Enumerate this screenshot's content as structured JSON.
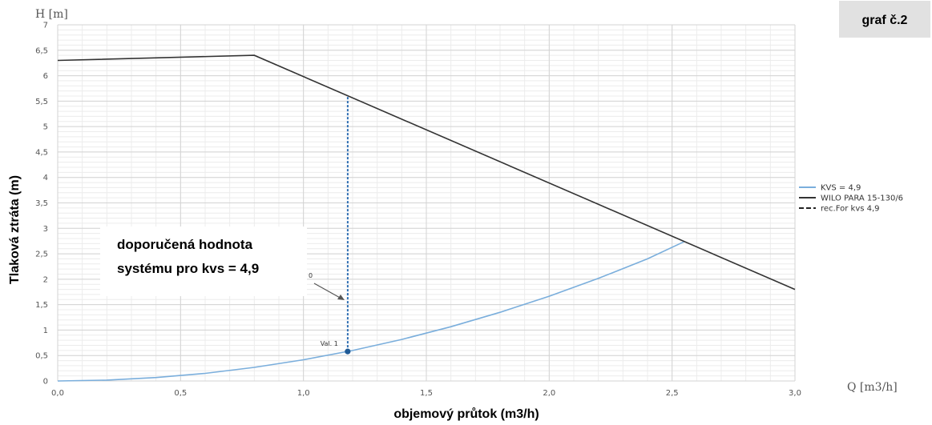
{
  "badge": "graf č.2",
  "callout": {
    "line1": "doporučená hodnota",
    "line2": "systému pro kvs = 4,9",
    "pointer_mark": "0"
  },
  "chart_data": {
    "type": "line",
    "y_unit_label": "H [m]",
    "x_unit_label": "Q [m3/h]",
    "ylabel": "Tlaková ztráta (m)",
    "xlabel": "objemový průtok (m3/h)",
    "xlim": [
      0,
      3.0
    ],
    "ylim": [
      0,
      7
    ],
    "x_ticks": [
      "0,0",
      "0,5",
      "1,0",
      "1,5",
      "2,0",
      "2,5",
      "3,0"
    ],
    "y_ticks": [
      "0",
      "0,5",
      "1",
      "1,5",
      "2",
      "2,5",
      "3",
      "3,5",
      "4",
      "4,5",
      "5",
      "5,5",
      "6",
      "6,5",
      "7"
    ],
    "grid": true,
    "legend_position": "right",
    "series": [
      {
        "name": "KVS = 4,9",
        "style": "solid",
        "color": "#7aaedc",
        "points": [
          [
            0,
            0
          ],
          [
            0.2,
            0.017
          ],
          [
            0.4,
            0.067
          ],
          [
            0.6,
            0.15
          ],
          [
            0.8,
            0.267
          ],
          [
            1.0,
            0.417
          ],
          [
            1.2,
            0.6
          ],
          [
            1.4,
            0.816
          ],
          [
            1.6,
            1.066
          ],
          [
            1.8,
            1.35
          ],
          [
            2.0,
            1.666
          ],
          [
            2.2,
            2.016
          ],
          [
            2.4,
            2.4
          ],
          [
            2.55,
            2.74
          ]
        ]
      },
      {
        "name": "WILO PARA 15-130/6",
        "style": "solid",
        "color": "#333333",
        "points": [
          [
            0,
            6.3
          ],
          [
            0.8,
            6.4
          ],
          [
            3.0,
            1.8
          ]
        ]
      },
      {
        "name": "rec.For kvs 4,9",
        "style": "dashed",
        "color": "#2f6fb3",
        "points": [
          [
            1.18,
            0.58
          ],
          [
            1.18,
            5.6
          ]
        ]
      }
    ],
    "annotations": [
      {
        "label": "Val. 1",
        "x": 1.18,
        "y": 0.58
      }
    ]
  }
}
